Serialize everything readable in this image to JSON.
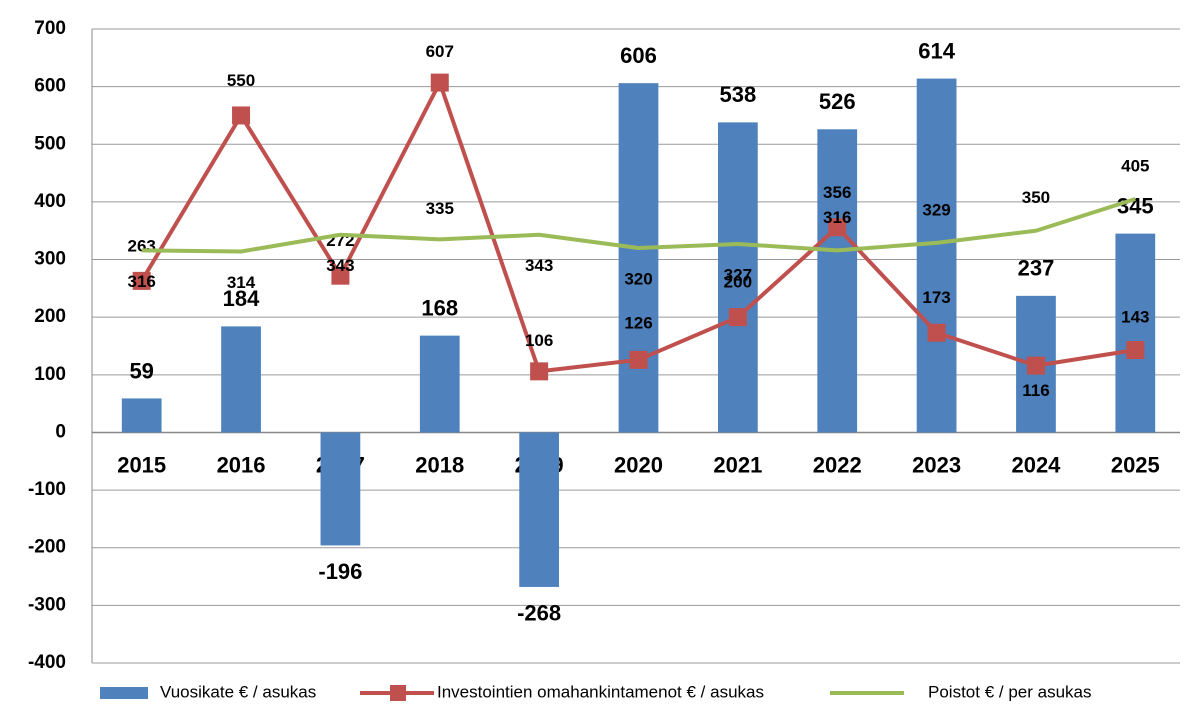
{
  "chart_data": {
    "type": "bar_line",
    "categories": [
      "2015",
      "2016",
      "2017",
      "2018",
      "2019",
      "2020",
      "2021",
      "2022",
      "2023",
      "2024",
      "2025"
    ],
    "series": [
      {
        "name": "Vuosikate € / asukas",
        "type": "bar",
        "color": "#4f81bd",
        "values": [
          59,
          184,
          -196,
          168,
          -268,
          606,
          538,
          526,
          614,
          237,
          345
        ]
      },
      {
        "name": "Investointien omahankintamenot € / asukas",
        "type": "line",
        "marker": "square",
        "color": "#c0504d",
        "values": [
          263,
          550,
          272,
          607,
          106,
          126,
          200,
          356,
          173,
          116,
          143
        ]
      },
      {
        "name": "Poistot € / per asukas",
        "type": "line",
        "color": "#9bbb59",
        "values": [
          316,
          314,
          343,
          335,
          343,
          320,
          327,
          316,
          329,
          350,
          405
        ]
      }
    ],
    "ylim": [
      -400,
      700
    ],
    "yticks": [
      -400,
      -300,
      -200,
      -100,
      0,
      100,
      200,
      300,
      400,
      500,
      600,
      700
    ],
    "grid": true,
    "legend": "bottom"
  }
}
